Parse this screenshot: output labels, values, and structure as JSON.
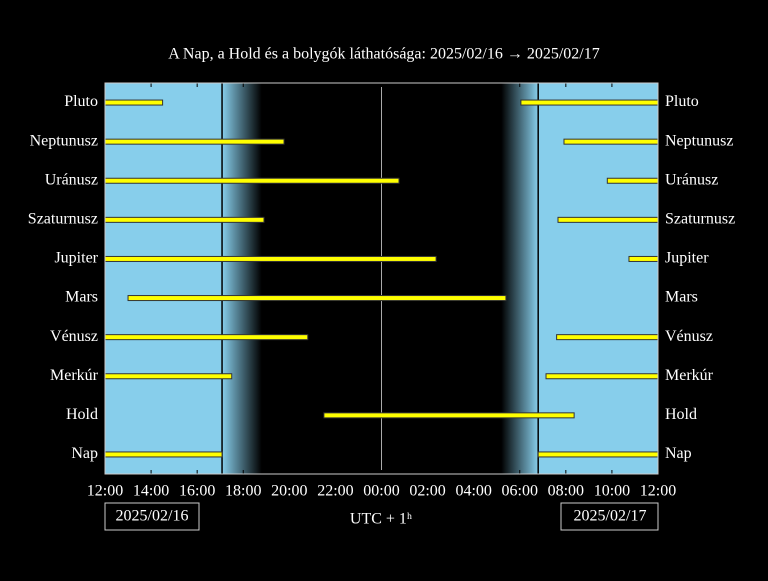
{
  "chart_data": {
    "type": "range",
    "title": "A Nap, a Hold és a bolygók láthatósága: 2025/02/16 → 2025/02/17",
    "x_label": "UTC + 1ʰ",
    "start_date": "2025/02/16",
    "end_date": "2025/02/17",
    "xlim": [
      12,
      36
    ],
    "xticks": [
      {
        "value": 12,
        "label": "12:00"
      },
      {
        "value": 14,
        "label": "14:00"
      },
      {
        "value": 16,
        "label": "16:00"
      },
      {
        "value": 18,
        "label": "18:00"
      },
      {
        "value": 20,
        "label": "20:00"
      },
      {
        "value": 22,
        "label": "22:00"
      },
      {
        "value": 24,
        "label": "00:00"
      },
      {
        "value": 26,
        "label": "02:00"
      },
      {
        "value": 28,
        "label": "04:00"
      },
      {
        "value": 30,
        "label": "06:00"
      },
      {
        "value": 32,
        "label": "08:00"
      },
      {
        "value": 34,
        "label": "10:00"
      },
      {
        "value": 36,
        "label": "12:00"
      }
    ],
    "vlines": [
      24
    ],
    "day_color": "#87ceeb",
    "bar_color": "#ffff00",
    "day": [
      [
        12,
        17.08
      ],
      [
        30.8,
        36
      ]
    ],
    "twilight": [
      [
        17.08,
        18.8
      ],
      [
        30.8,
        29.2
      ]
    ],
    "series": [
      {
        "name": "Pluto",
        "ranges": [
          [
            12,
            14.5
          ],
          [
            30.05,
            36
          ]
        ]
      },
      {
        "name": "Neptunusz",
        "ranges": [
          [
            12,
            19.77
          ],
          [
            31.92,
            36
          ]
        ]
      },
      {
        "name": "Uránusz",
        "ranges": [
          [
            12,
            24.76
          ],
          [
            33.8,
            36
          ]
        ]
      },
      {
        "name": "Szaturnusz",
        "ranges": [
          [
            12,
            18.9
          ],
          [
            31.66,
            36
          ]
        ]
      },
      {
        "name": "Jupiter",
        "ranges": [
          [
            12,
            26.37
          ],
          [
            34.74,
            36
          ]
        ]
      },
      {
        "name": "Mars",
        "ranges": [
          [
            13.0,
            29.4
          ]
        ]
      },
      {
        "name": "Vénusz",
        "ranges": [
          [
            12,
            20.8
          ],
          [
            31.6,
            36
          ]
        ]
      },
      {
        "name": "Merkúr",
        "ranges": [
          [
            12,
            17.5
          ],
          [
            31.14,
            36
          ]
        ]
      },
      {
        "name": "Hold",
        "ranges": [
          [
            21.5,
            32.36
          ]
        ]
      },
      {
        "name": "Nap",
        "ranges": [
          [
            12,
            17.08
          ],
          [
            30.8,
            36
          ]
        ]
      }
    ]
  }
}
